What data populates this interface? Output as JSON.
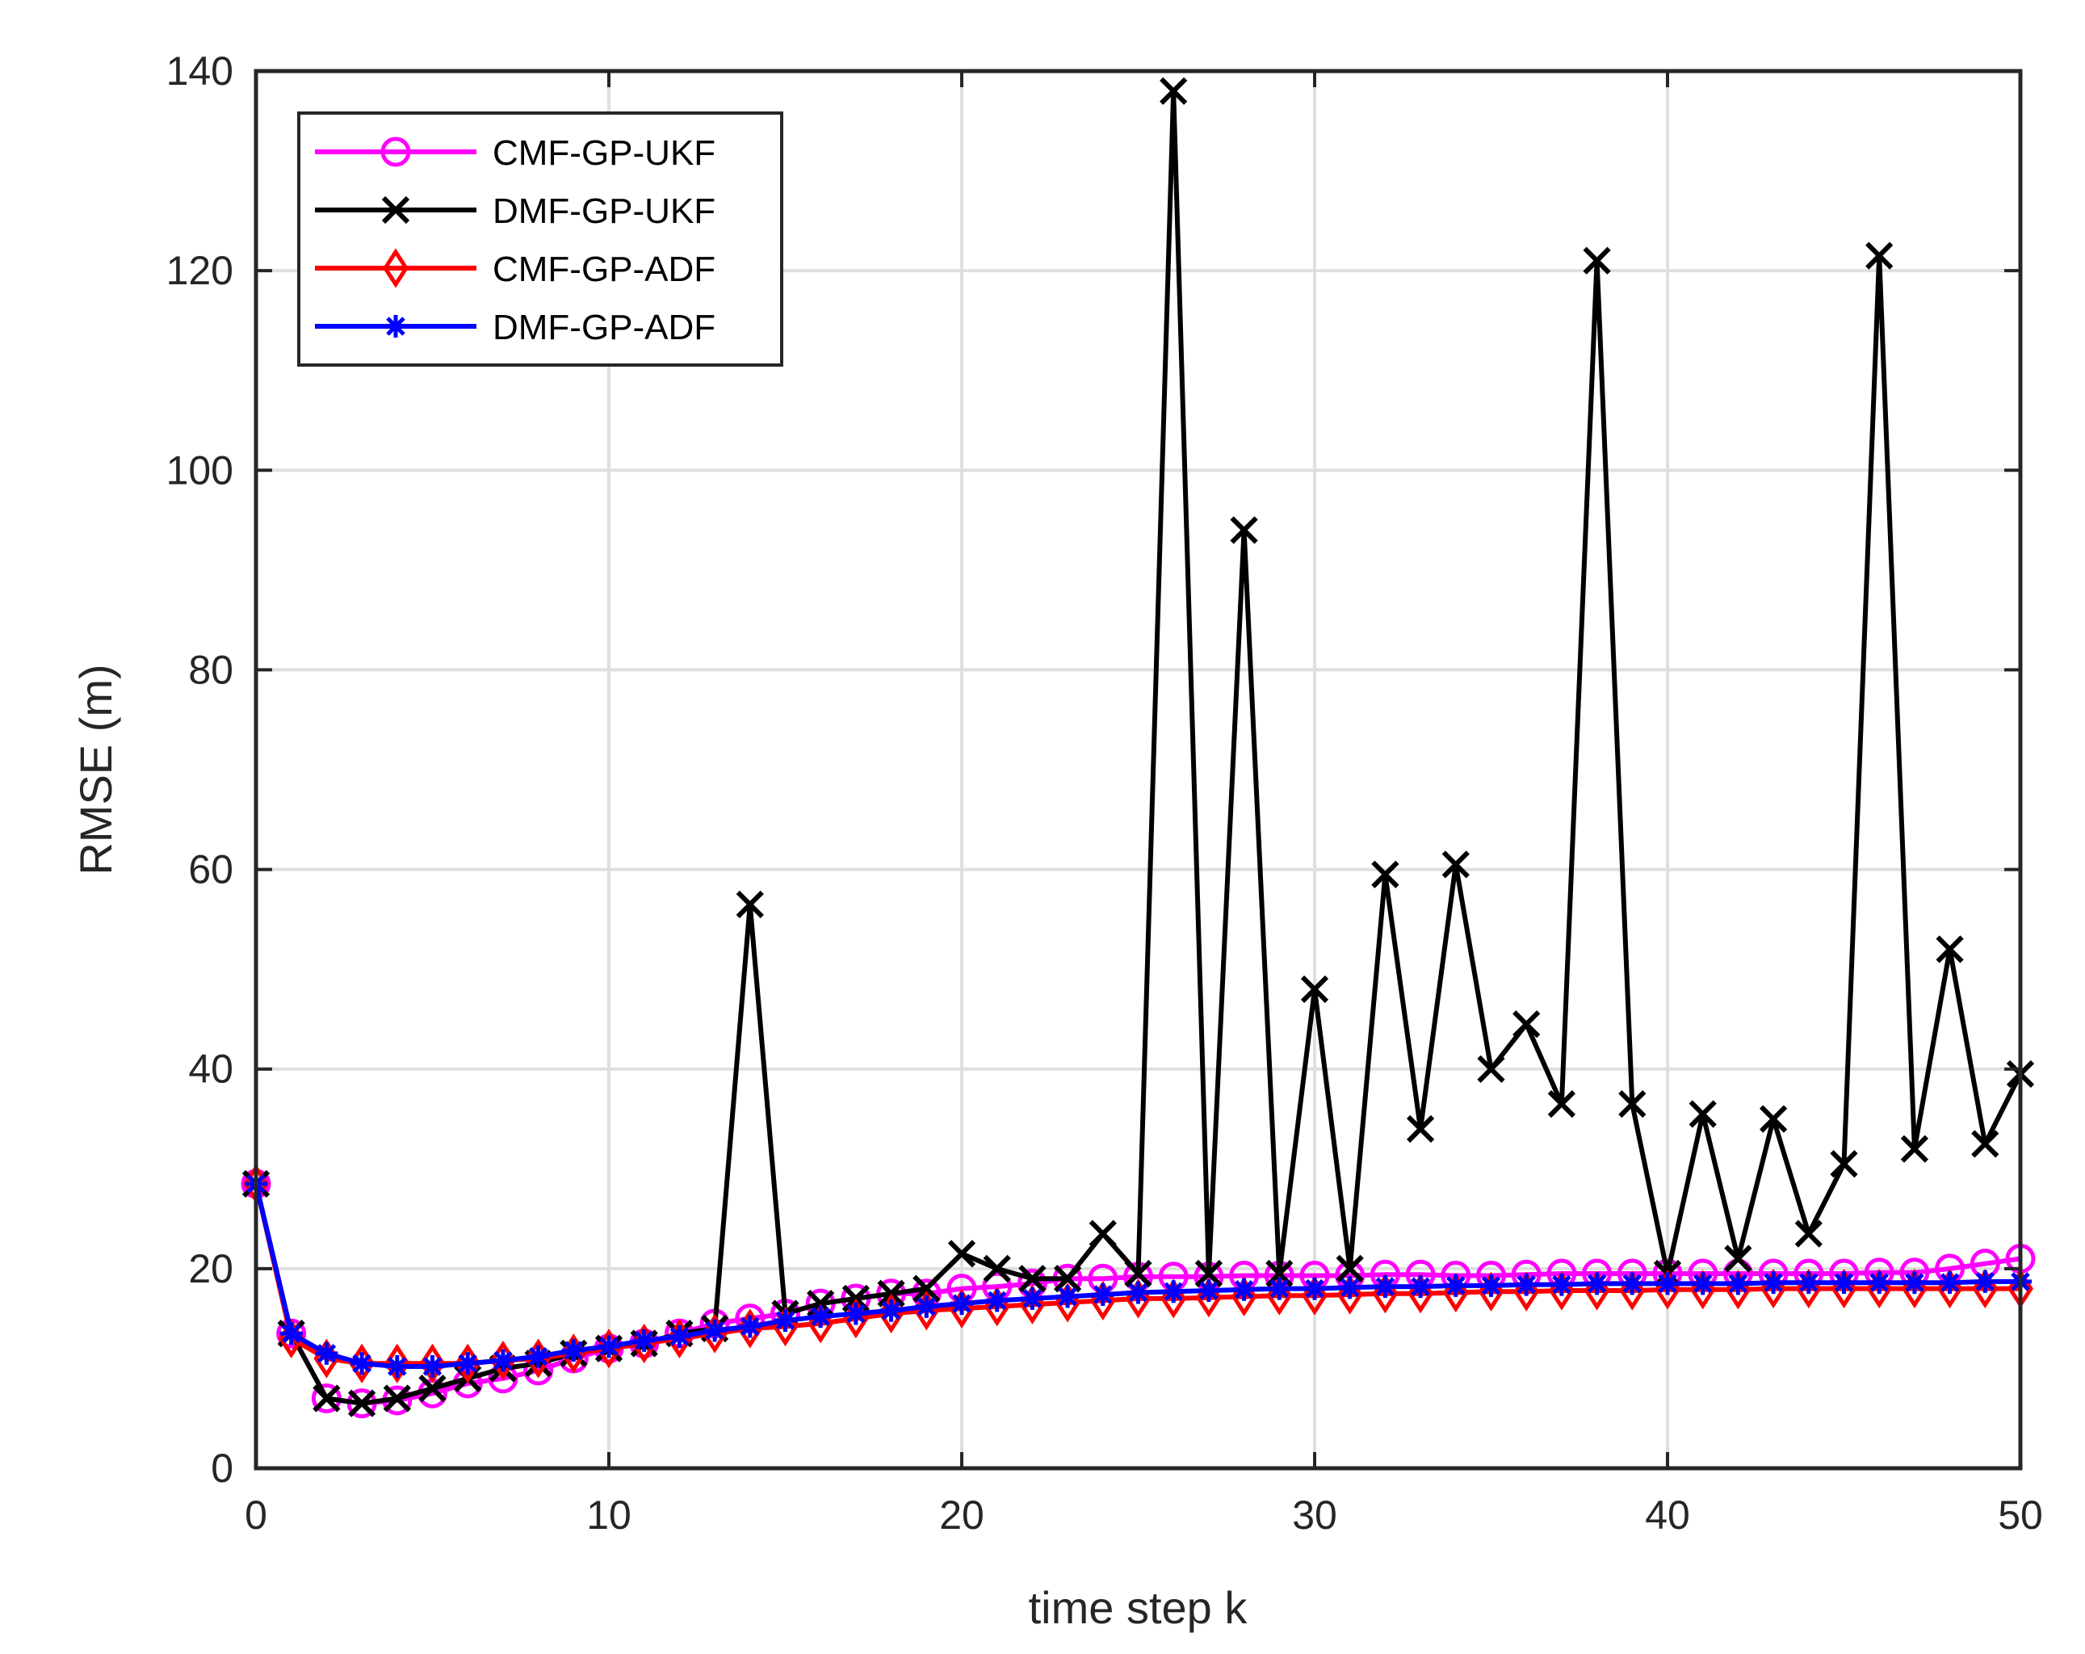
{
  "chart_data": {
    "type": "line",
    "title": "",
    "xlabel": "time step k",
    "ylabel": "RMSE (m)",
    "xlim": [
      0,
      50
    ],
    "ylim": [
      0,
      140
    ],
    "xticks": [
      0,
      10,
      20,
      30,
      40,
      50
    ],
    "yticks": [
      0,
      20,
      40,
      60,
      80,
      100,
      120,
      140
    ],
    "grid": true,
    "legend_position": "top-left",
    "x": [
      0,
      1,
      2,
      3,
      4,
      5,
      6,
      7,
      8,
      9,
      10,
      11,
      12,
      13,
      14,
      15,
      16,
      17,
      18,
      19,
      20,
      21,
      22,
      23,
      24,
      25,
      26,
      27,
      28,
      29,
      30,
      31,
      32,
      33,
      34,
      35,
      36,
      37,
      38,
      39,
      40,
      41,
      42,
      43,
      44,
      45,
      46,
      47,
      48,
      49,
      50
    ],
    "series": [
      {
        "name": "CMF-GP-UKF",
        "color": "#ff00ff",
        "marker": "circle",
        "values": [
          28.5,
          13.5,
          7.0,
          6.5,
          6.8,
          7.5,
          8.5,
          9.0,
          9.8,
          11.0,
          12.0,
          12.5,
          13.5,
          14.5,
          15.0,
          15.5,
          16.5,
          17.0,
          17.5,
          17.5,
          18.0,
          18.2,
          18.5,
          19.0,
          19.0,
          19.2,
          19.2,
          19.2,
          19.3,
          19.3,
          19.3,
          19.3,
          19.4,
          19.4,
          19.3,
          19.3,
          19.4,
          19.5,
          19.5,
          19.5,
          19.5,
          19.5,
          19.5,
          19.5,
          19.5,
          19.5,
          19.6,
          19.6,
          20.0,
          20.5,
          21.0
        ]
      },
      {
        "name": "DMF-GP-UKF",
        "color": "#000000",
        "marker": "x",
        "values": [
          28.5,
          13.5,
          7.0,
          6.5,
          7.0,
          8.0,
          9.0,
          10.0,
          10.5,
          11.5,
          12.0,
          12.5,
          13.5,
          14.0,
          56.5,
          15.5,
          16.5,
          17.0,
          17.5,
          18.0,
          21.5,
          20.0,
          19.0,
          19.0,
          23.5,
          19.5,
          138.0,
          19.5,
          94.0,
          19.5,
          48.0,
          20.0,
          59.5,
          34.0,
          60.5,
          40.0,
          44.5,
          36.5,
          121.0,
          36.5,
          19.5,
          35.5,
          21.0,
          35.0,
          23.5,
          30.5,
          121.5,
          32.0,
          52.0,
          32.5,
          39.5
        ]
      },
      {
        "name": "CMF-GP-ADF",
        "color": "#ff0000",
        "marker": "diamond",
        "values": [
          28.5,
          13.0,
          11.0,
          10.5,
          10.5,
          10.5,
          10.5,
          10.8,
          11.0,
          11.5,
          12.0,
          12.5,
          13.0,
          13.5,
          14.0,
          14.2,
          14.5,
          15.0,
          15.5,
          15.8,
          16.0,
          16.2,
          16.4,
          16.6,
          16.8,
          17.0,
          17.0,
          17.1,
          17.2,
          17.3,
          17.3,
          17.4,
          17.5,
          17.5,
          17.6,
          17.7,
          17.7,
          17.8,
          17.8,
          17.8,
          17.9,
          17.9,
          17.9,
          18.0,
          18.0,
          18.0,
          18.0,
          18.0,
          18.0,
          18.0,
          18.0
        ]
      },
      {
        "name": "DMF-GP-ADF",
        "color": "#0000ff",
        "marker": "asterisk",
        "values": [
          28.5,
          13.5,
          11.5,
          10.5,
          10.2,
          10.2,
          10.5,
          10.8,
          11.2,
          11.8,
          12.2,
          12.8,
          13.2,
          13.8,
          14.2,
          14.8,
          15.2,
          15.5,
          15.8,
          16.2,
          16.5,
          16.8,
          17.0,
          17.2,
          17.4,
          17.6,
          17.7,
          17.8,
          17.9,
          18.0,
          18.0,
          18.1,
          18.2,
          18.2,
          18.3,
          18.3,
          18.4,
          18.4,
          18.5,
          18.5,
          18.5,
          18.5,
          18.5,
          18.6,
          18.6,
          18.6,
          18.6,
          18.6,
          18.6,
          18.7,
          18.7
        ]
      }
    ]
  }
}
